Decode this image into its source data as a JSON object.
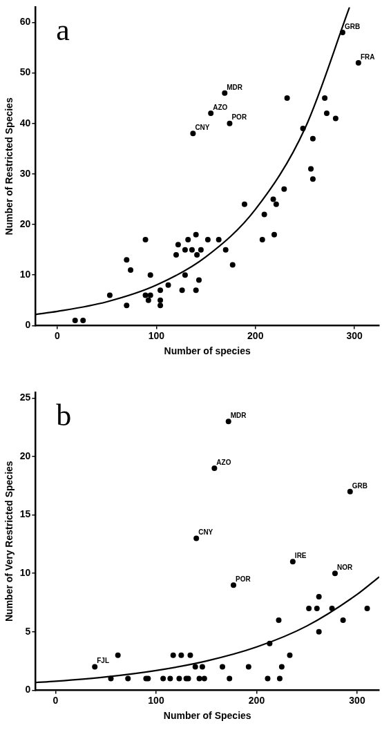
{
  "chart_data": [
    {
      "type": "scatter",
      "xlabel": "Number of species",
      "ylabel": "Number of Restricted Species",
      "xlim": [
        -22,
        325
      ],
      "ylim": [
        0,
        63
      ],
      "xticks": [
        0,
        100,
        200,
        300
      ],
      "yticks": [
        0,
        10,
        20,
        30,
        40,
        50,
        60
      ],
      "grid": false,
      "legend": false,
      "marker": "circle",
      "annotations": [
        "a",
        {
          "text": "GRB",
          "x": 288,
          "y": 58
        },
        {
          "text": "FRA",
          "x": 304,
          "y": 52
        },
        {
          "text": "MDR",
          "x": 169,
          "y": 46
        },
        {
          "text": "AZO",
          "x": 155,
          "y": 42
        },
        {
          "text": "POR",
          "x": 174,
          "y": 40
        },
        {
          "text": "CNY",
          "x": 137,
          "y": 38
        }
      ],
      "series": [
        {
          "color": "#000000",
          "x": [
            18,
            26,
            53,
            70,
            70,
            74,
            89,
            89,
            92,
            94,
            94,
            104,
            104,
            104,
            112,
            120,
            122,
            126,
            129,
            129,
            132,
            136,
            140,
            140,
            141,
            143,
            145,
            152,
            163,
            170,
            177,
            189,
            207,
            209,
            218,
            219,
            221,
            229,
            232,
            248,
            256,
            258,
            258,
            270,
            272,
            281,
            288,
            304,
            169,
            155,
            174,
            137
          ],
          "values": [
            1,
            1,
            6,
            13,
            4,
            11,
            17,
            6,
            5,
            10,
            6,
            7,
            5,
            4,
            8,
            14,
            16,
            7,
            15,
            10,
            17,
            15,
            7,
            18,
            14,
            9,
            15,
            17,
            17,
            15,
            12,
            24,
            17,
            22,
            25,
            18,
            24,
            27,
            45,
            39,
            31,
            37,
            29,
            45,
            42,
            41,
            58,
            52,
            46,
            42,
            40,
            38
          ]
        },
        {
          "type": "line",
          "marker": "none",
          "color": "#000000",
          "x": [
            -22,
            0,
            50,
            100,
            150,
            200,
            250,
            295
          ],
          "values": [
            2.2,
            2.8,
            4.7,
            8,
            13.6,
            23,
            39,
            63
          ]
        }
      ]
    },
    {
      "type": "scatter",
      "xlabel": "Number of Species",
      "ylabel": "Number of Very Restricted Species",
      "xlim": [
        -20,
        322
      ],
      "ylim": [
        0,
        25.5
      ],
      "xticks": [
        0,
        100,
        200,
        300
      ],
      "yticks": [
        0,
        5,
        10,
        15,
        20,
        25
      ],
      "grid": false,
      "legend": false,
      "marker": "circle",
      "annotations": [
        "b",
        {
          "text": "MDR",
          "x": 172,
          "y": 23
        },
        {
          "text": "AZO",
          "x": 158,
          "y": 19
        },
        {
          "text": "GRB",
          "x": 293,
          "y": 17
        },
        {
          "text": "CNY",
          "x": 140,
          "y": 13
        },
        {
          "text": "IRE",
          "x": 236,
          "y": 11
        },
        {
          "text": "NOR",
          "x": 278,
          "y": 10
        },
        {
          "text": "POR",
          "x": 177,
          "y": 9
        },
        {
          "text": "FJL",
          "x": 39,
          "y": 2
        }
      ],
      "series": [
        {
          "color": "#000000",
          "x": [
            172,
            158,
            293,
            140,
            236,
            278,
            177,
            39,
            62,
            55,
            72,
            90,
            92,
            107,
            114,
            123,
            130,
            132,
            143,
            148,
            117,
            125,
            134,
            139,
            146,
            262,
            252,
            260,
            275,
            310,
            222,
            286,
            262,
            213,
            233,
            166,
            192,
            225,
            173,
            211,
            223
          ],
          "values": [
            23,
            19,
            17,
            13,
            11,
            10,
            9,
            2,
            3,
            1,
            1,
            1,
            1,
            1,
            1,
            1,
            1,
            1,
            1,
            1,
            3,
            3,
            3,
            2,
            2,
            8,
            7,
            7,
            7,
            7,
            6,
            6,
            5,
            4,
            3,
            2,
            2,
            2,
            1,
            1,
            1
          ]
        },
        {
          "type": "line",
          "marker": "none",
          "color": "#000000",
          "x": [
            -20,
            0,
            50,
            100,
            150,
            200,
            250,
            300,
            322
          ],
          "values": [
            0.66,
            0.77,
            1.14,
            1.69,
            2.5,
            3.7,
            5.5,
            8.2,
            9.7
          ]
        }
      ]
    }
  ]
}
